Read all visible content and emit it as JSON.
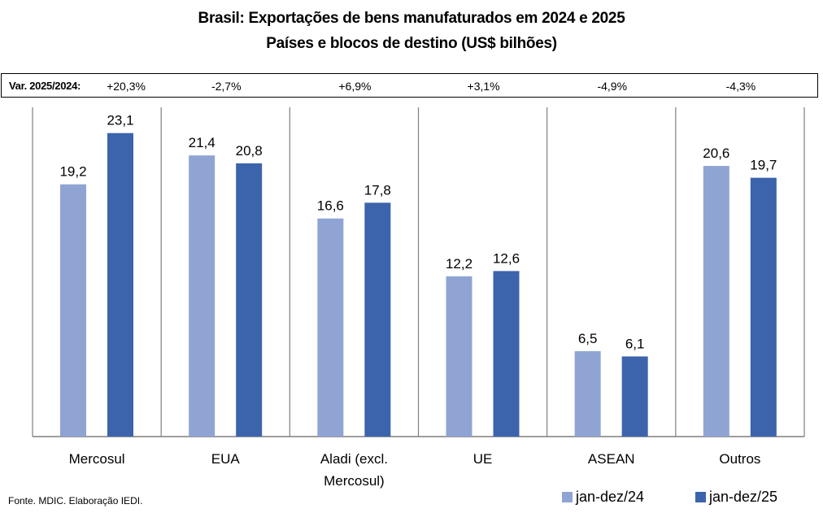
{
  "chart_data": {
    "type": "bar",
    "title": "Brasil: Exportações de bens manufaturados em 2024 e 2025",
    "subtitle": "Países e blocos de destino (US$ bilhões)",
    "categories": [
      "Mercosul",
      "EUA",
      "Aladi (excl. Mercosul)",
      "UE",
      "ASEAN",
      "Outros"
    ],
    "category_lines": [
      [
        "Mercosul"
      ],
      [
        "EUA"
      ],
      [
        "Aladi (excl.",
        "Mercosul)"
      ],
      [
        "UE"
      ],
      [
        "ASEAN"
      ],
      [
        "Outros"
      ]
    ],
    "series": [
      {
        "name": "jan-dez/24",
        "color": "#8FA4D3",
        "values": [
          19.2,
          21.4,
          16.6,
          12.2,
          6.5,
          20.6
        ],
        "labels": [
          "19,2",
          "21,4",
          "16,6",
          "12,2",
          "6,5",
          "20,6"
        ]
      },
      {
        "name": "jan-dez/25",
        "color": "#3C64AC",
        "values": [
          23.1,
          20.8,
          17.8,
          12.6,
          6.1,
          19.7
        ],
        "labels": [
          "23,1",
          "20,8",
          "17,8",
          "12,6",
          "6,1",
          "19,7"
        ]
      }
    ],
    "variation_label": "Var. 2025/2024:",
    "variation": [
      "+20,3%",
      "-2,7%",
      "+6,9%",
      "+3,1%",
      "-4,9%",
      "-4,3%"
    ],
    "xlabel": "",
    "ylabel": "",
    "ylim": [
      0,
      25
    ],
    "grid": false,
    "legend": "bottom-right"
  },
  "footer": "Fonte. MDIC. Elaboração IEDI."
}
